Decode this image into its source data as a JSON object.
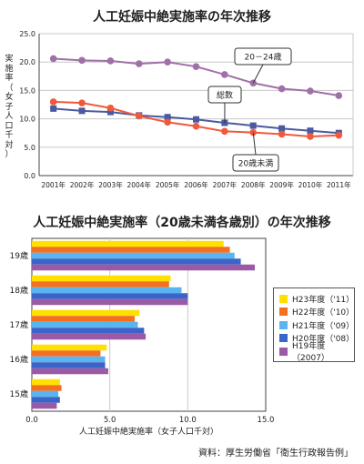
{
  "chart_data": [
    {
      "type": "line",
      "title": "人工妊娠中絶実施率の年次推移",
      "ylabel": "実施率（女子人口千対）",
      "x": [
        "2001年",
        "2002年",
        "2003年",
        "2004年",
        "2005年",
        "2006年",
        "2007年",
        "2008年",
        "2009年",
        "2010年",
        "2011年"
      ],
      "ylim": [
        0,
        25
      ],
      "yticks": [
        "0.0",
        "5.0",
        "10.0",
        "15.0",
        "20.0",
        "25.0"
      ],
      "grid": true,
      "series": [
        {
          "name": "20－24歳",
          "color": "#a070a8",
          "values": [
            20.6,
            20.3,
            20.2,
            19.7,
            20.0,
            19.2,
            17.8,
            16.3,
            15.3,
            14.9,
            14.1
          ]
        },
        {
          "name": "総数",
          "color": "#4a5aa0",
          "values": [
            11.8,
            11.4,
            11.2,
            10.6,
            10.3,
            9.9,
            9.3,
            8.8,
            8.3,
            7.9,
            7.5
          ]
        },
        {
          "name": "20歳未満",
          "color": "#f05a3c",
          "values": [
            13.0,
            12.8,
            11.9,
            10.5,
            9.4,
            8.7,
            7.8,
            7.6,
            7.3,
            6.9,
            7.1
          ]
        }
      ]
    },
    {
      "type": "bar",
      "orientation": "horizontal",
      "title": "人工妊娠中絶実施率（20歳未満各歳別）の年次推移",
      "xlabel": "人工妊娠中絶実施率（女子人口千対）",
      "categories": [
        "19歳",
        "18歳",
        "17歳",
        "16歳",
        "15歳"
      ],
      "xlim": [
        0,
        15
      ],
      "xticks": [
        "0.0",
        "5.0",
        "10.0",
        "15.0"
      ],
      "legend_position": "right",
      "series": [
        {
          "name": "H23年度（'11）",
          "color": "#ffe000",
          "values": [
            12.3,
            8.9,
            6.9,
            4.8,
            1.8
          ]
        },
        {
          "name": "H22年度（'10）",
          "color": "#f47020",
          "values": [
            12.7,
            8.8,
            6.6,
            4.4,
            1.9
          ]
        },
        {
          "name": "H21年度（'09）",
          "color": "#5ab4f0",
          "values": [
            13.0,
            9.6,
            6.8,
            4.7,
            1.7
          ]
        },
        {
          "name": "H20年度（'08）",
          "color": "#3c64c8",
          "values": [
            13.4,
            10.0,
            7.2,
            4.7,
            1.8
          ]
        },
        {
          "name": "H19年度（2007）",
          "color": "#9a5aa6",
          "values": [
            14.3,
            10.0,
            7.3,
            4.9,
            1.6
          ]
        }
      ]
    }
  ],
  "source": "資料：厚生労働省「衛生行政報告例」"
}
